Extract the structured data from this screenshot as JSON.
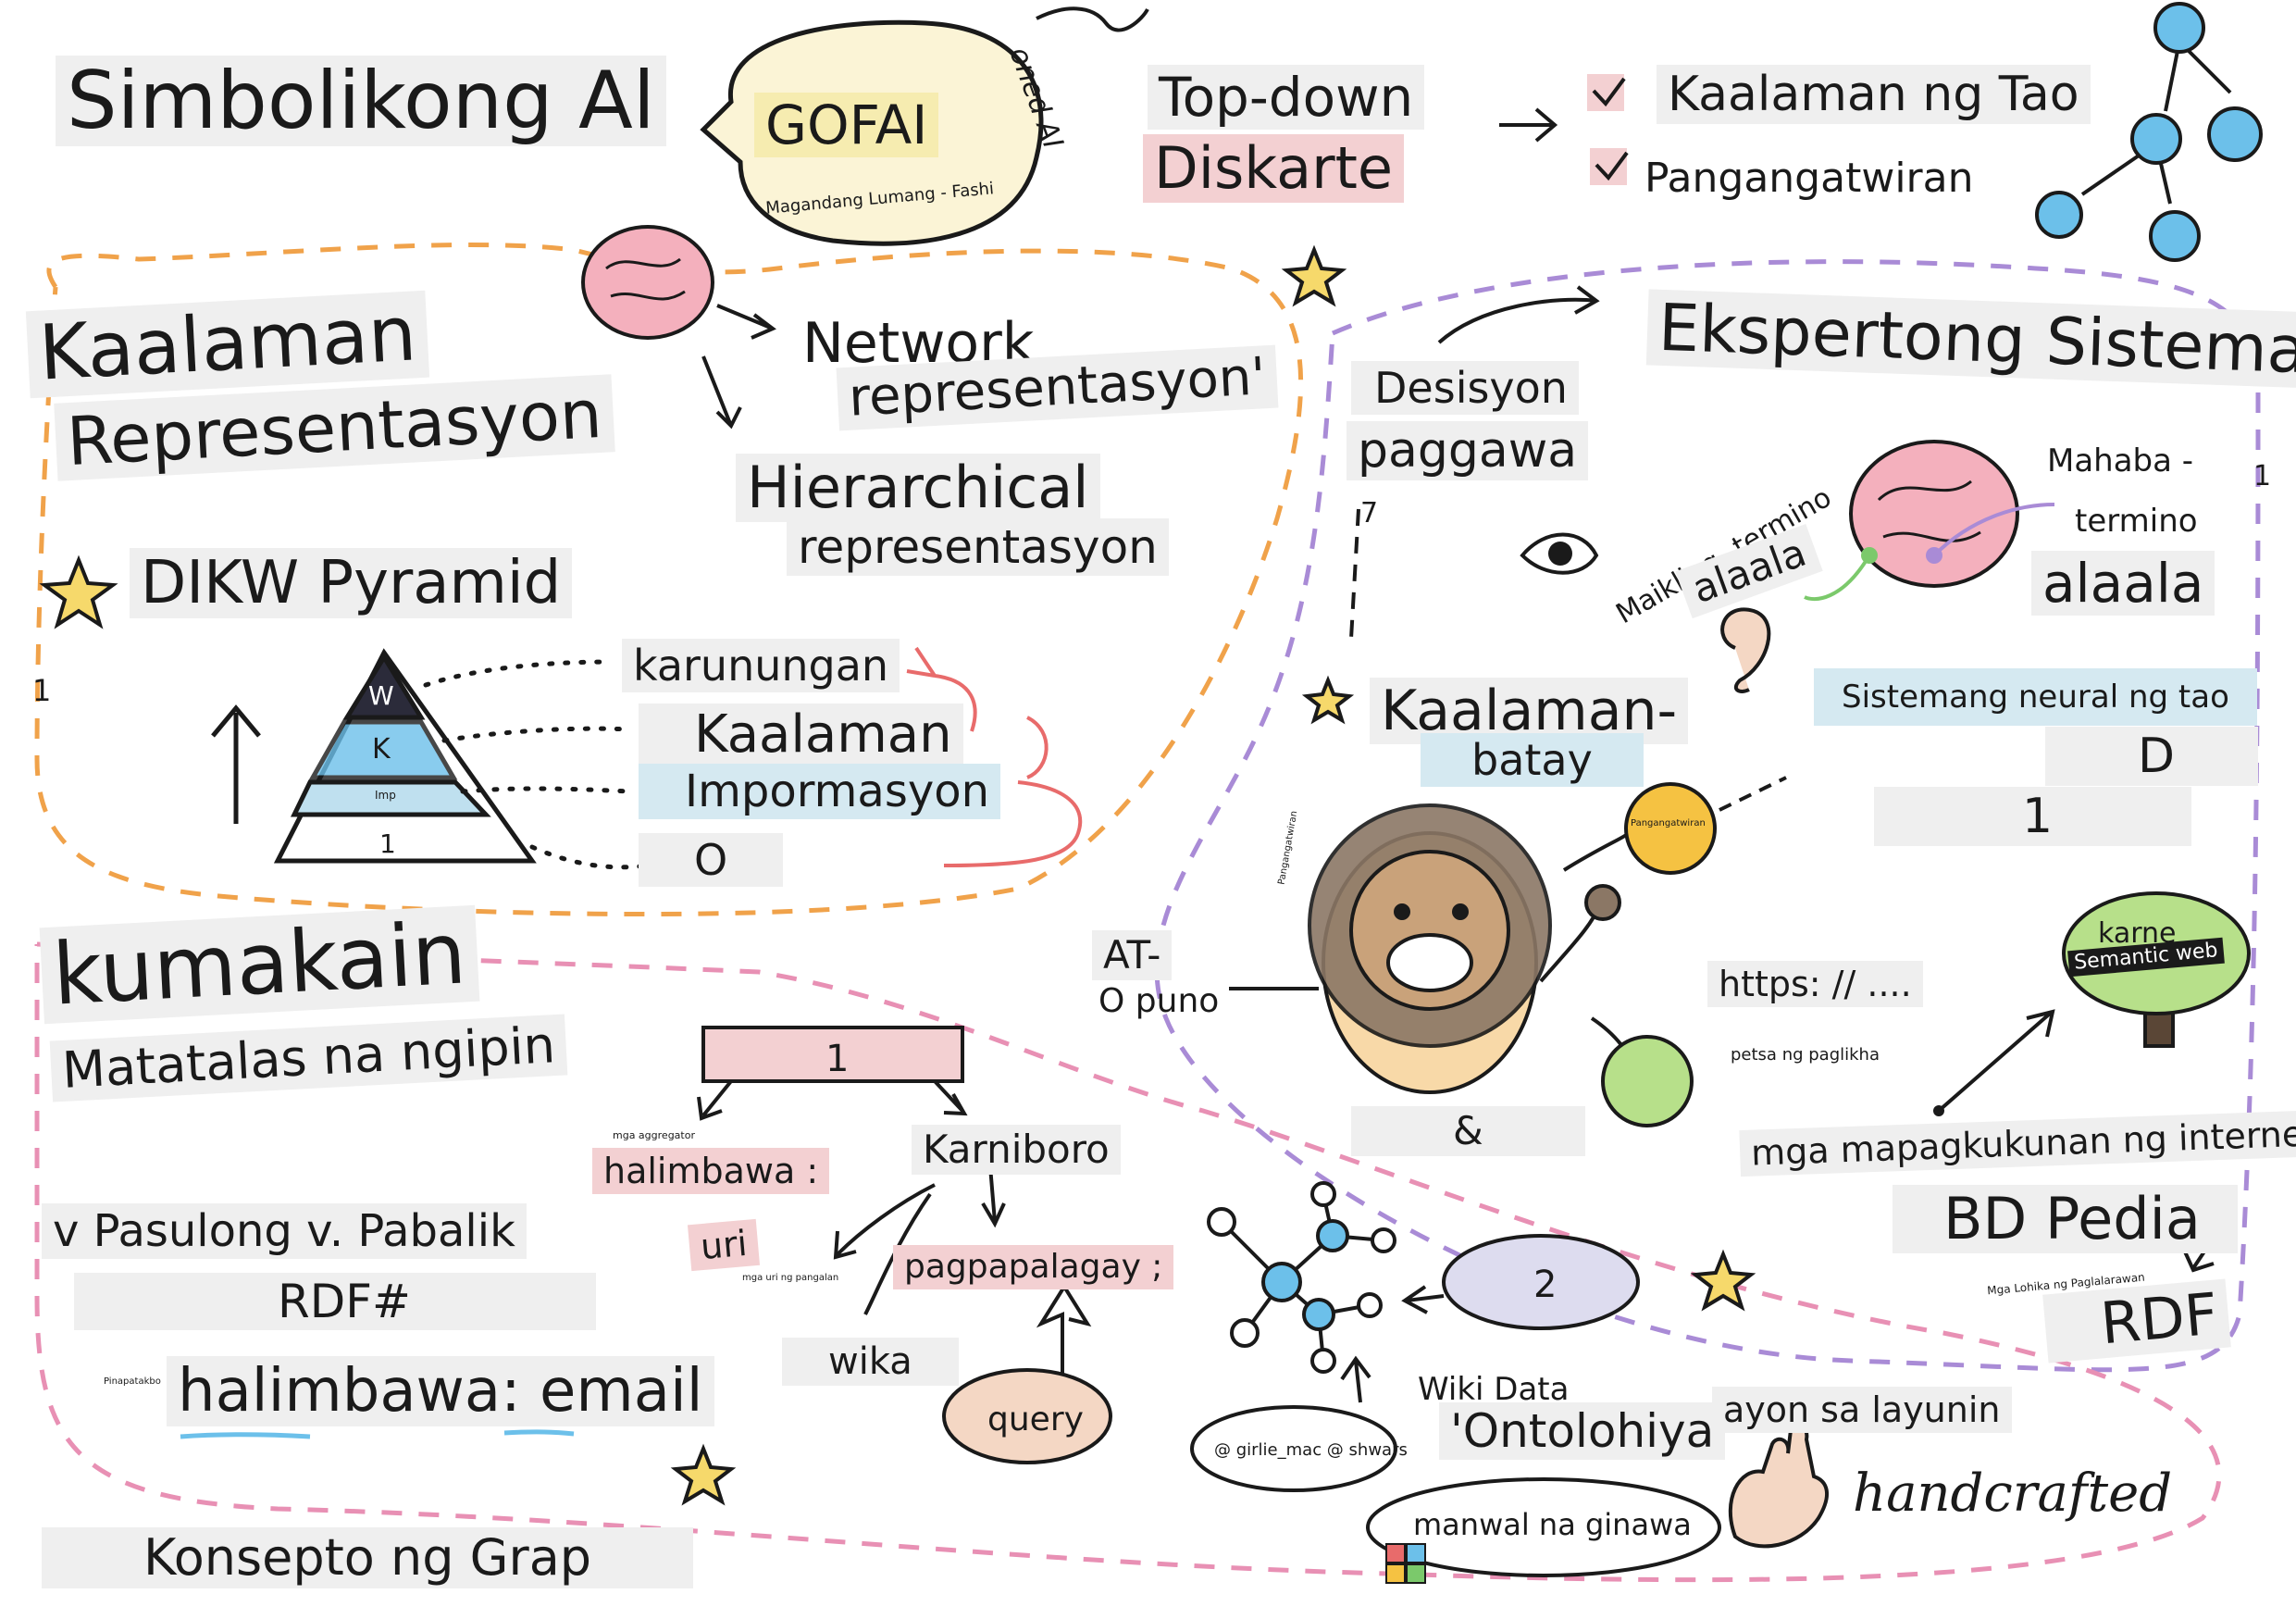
{
  "colors": {
    "ink": "#1a1a1a",
    "orange_dash": "#f0a24a",
    "purple_dash": "#a98bd6",
    "pink_dash": "#e890b4",
    "highlight_gray": "#efefef",
    "highlight_pink": "#f3d0d2",
    "highlight_blue": "#d5e9f1",
    "highlight_yellow": "#f6ecb0",
    "brain_pink": "#f4b0bd",
    "node_blue": "#6cc0ea",
    "node_green": "#b7e08a",
    "node_yellow": "#f5c242",
    "lion_brown": "#c9a27a",
    "red_arrow": "#e86b6b"
  },
  "header": {
    "title": "Simbolikong Al",
    "gofai": "GOFAI",
    "gofai_sub": "Magandang Lumang - Fashi",
    "gofai_curl": "oned AI",
    "topdown": "Top-down",
    "diskarte": "Diskarte",
    "kaalaman_ng_tao": "Kaalaman ng Tao",
    "pangangatwiran": "Pangangatwiran"
  },
  "knowledge": {
    "title1": "Kaalaman",
    "title2": "Representasyon",
    "network1": "Network",
    "network2": "representasyon'",
    "hier1": "Hierarchical",
    "hier2": "representasyon",
    "dikw": "DIKW Pyramid",
    "pyr_w": "W",
    "pyr_k": "K",
    "pyr_i": "Imp",
    "pyr_d": "1",
    "karunungan": "karunungan",
    "kaalaman": "Kaalaman",
    "impormasyon": "Impormasyon",
    "o_label": "O",
    "side_one": "1"
  },
  "expert": {
    "title": "Ekspertong Sistema",
    "desisyon1": "Desisyon",
    "desisyon2": "paggawa",
    "seven": "7",
    "short1": "Maikling- termino",
    "short2": "alaala",
    "long1": "Mahaba -",
    "long2": "termino",
    "long3": "alaala",
    "one_right": "1",
    "neural": "Sistemang neural ng tao",
    "kb1": "Kaalaman-",
    "kb2": "batay",
    "d_label": "D",
    "one_box": "1"
  },
  "lion": {
    "at1": "AT-",
    "at2": "O puno",
    "ampersand": "&",
    "yellow_node": "Pangangatwiran",
    "green_node": "petsa ng paglikha",
    "side_tag": "Pangangatwiran",
    "https": "https: // ....",
    "karne": "karne",
    "semantic": "Semantic web",
    "internet": "mga mapagkukunan ng internet",
    "dbpedia": "BD Pedia",
    "rdf": "RDF",
    "rdf_small": "Mga Lohika ng Paglalarawan"
  },
  "graph": {
    "kumakain": "kumakain",
    "matatalas": "Matatalas na ngipin",
    "box_one": "1",
    "halimbawa": "halimbawa :",
    "halimbawa_tag": "mga aggregator",
    "karniboro": "Karniboro",
    "uri": "uri",
    "uri_small": "mga uri ng pangalan",
    "pagpapalagay": "pagpapalagay ;",
    "wika": "wika",
    "query": "query",
    "pasulong": "v Pasulong v. Pabalik",
    "rdf_hash": "RDF#",
    "email": "halimbawa: email",
    "email_tag": "Pinapatakbo",
    "konsepto": "Konsepto ng Grap",
    "two": "2",
    "wikidata": "Wiki Data",
    "ontolohiya": "'Ontolohiya",
    "credits": "@ girlie_mac @ shwars",
    "ayon": "ayon sa layunin",
    "handcrafted": "handcrafted",
    "manwal": "manwal na ginawa"
  }
}
